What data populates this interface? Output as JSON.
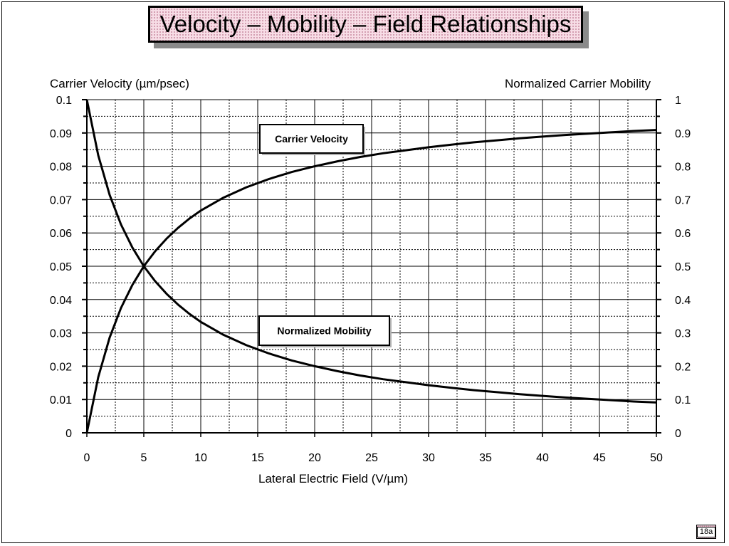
{
  "slide": {
    "title": "Velocity – Mobility – Field  Relationships",
    "page_number": "18a"
  },
  "colors": {
    "title_fill": "#f7dde6",
    "grid": "#000000",
    "curve": "#000000"
  },
  "chart_data": {
    "type": "line",
    "title": "",
    "xlabel": "Lateral  Electric  Field  (V/µm)",
    "ylabel_left": "Carrier Velocity (µm/psec)",
    "ylabel_right": "Normalized Carrier Mobility",
    "xlim": [
      0,
      50
    ],
    "ylim_left": [
      0,
      0.1
    ],
    "ylim_right": [
      0,
      1
    ],
    "grid": true,
    "x_ticks": [
      "0",
      "5",
      "10",
      "15",
      "20",
      "25",
      "30",
      "35",
      "40",
      "45",
      "50"
    ],
    "y_left_ticks": [
      "0",
      "0.01",
      "0.02",
      "0.03",
      "0.04",
      "0.05",
      "0.06",
      "0.07",
      "0.08",
      "0.09",
      "0.1"
    ],
    "y_right_ticks": [
      "0",
      "0.1",
      "0.2",
      "0.3",
      "0.4",
      "0.5",
      "0.6",
      "0.7",
      "0.8",
      "0.9",
      "1"
    ],
    "series": [
      {
        "name": "Carrier Velocity",
        "axis": "left",
        "x": [
          0,
          1,
          2,
          3,
          4,
          5,
          6,
          7,
          8,
          9,
          10,
          12,
          14,
          16,
          18,
          20,
          22,
          24,
          26,
          28,
          30,
          32,
          34,
          36,
          38,
          40,
          42,
          44,
          46,
          48,
          50
        ],
        "y": [
          0,
          0.0167,
          0.0286,
          0.0375,
          0.0444,
          0.05,
          0.0545,
          0.0583,
          0.0615,
          0.0643,
          0.0667,
          0.0706,
          0.0737,
          0.0762,
          0.0783,
          0.08,
          0.0815,
          0.0828,
          0.0839,
          0.0848,
          0.0857,
          0.0865,
          0.0872,
          0.0878,
          0.0884,
          0.0889,
          0.0894,
          0.0898,
          0.0902,
          0.0906,
          0.0909
        ]
      },
      {
        "name": "Normalized Mobility",
        "axis": "right",
        "x": [
          0,
          1,
          2,
          3,
          4,
          5,
          6,
          7,
          8,
          9,
          10,
          12,
          14,
          16,
          18,
          20,
          22,
          24,
          26,
          28,
          30,
          32,
          34,
          36,
          38,
          40,
          42,
          44,
          46,
          48,
          50
        ],
        "y": [
          1,
          0.833,
          0.714,
          0.625,
          0.556,
          0.5,
          0.455,
          0.417,
          0.385,
          0.357,
          0.333,
          0.294,
          0.263,
          0.238,
          0.217,
          0.2,
          0.185,
          0.172,
          0.161,
          0.152,
          0.143,
          0.135,
          0.128,
          0.122,
          0.116,
          0.111,
          0.106,
          0.102,
          0.098,
          0.094,
          0.091
        ]
      }
    ],
    "annotations": [
      {
        "text": "Carrier Velocity",
        "series": "Carrier Velocity"
      },
      {
        "text": "Normalized Mobility",
        "series": "Normalized Mobility"
      }
    ]
  }
}
